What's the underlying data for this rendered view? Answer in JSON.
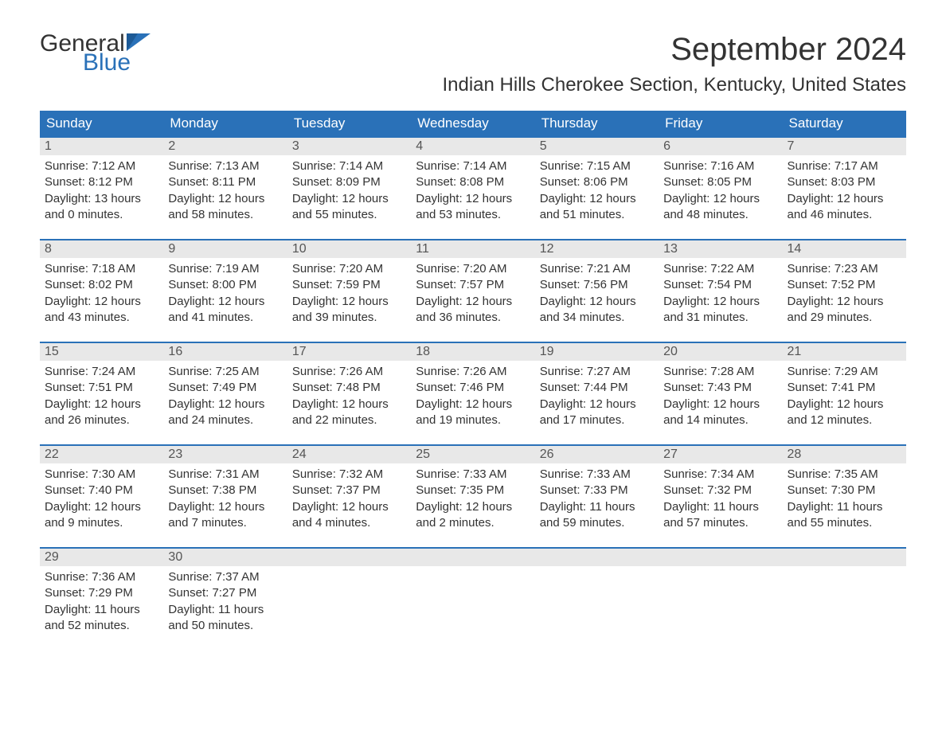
{
  "logo": {
    "text1": "General",
    "text2": "Blue",
    "shape_color": "#2a71b8"
  },
  "header": {
    "month_title": "September 2024",
    "location": "Indian Hills Cherokee Section, Kentucky, United States"
  },
  "colors": {
    "header_bg": "#2a71b8",
    "header_text": "#ffffff",
    "daynum_bg": "#e8e8e8",
    "week_border": "#2a71b8",
    "body_text": "#333333",
    "page_bg": "#ffffff"
  },
  "day_names": [
    "Sunday",
    "Monday",
    "Tuesday",
    "Wednesday",
    "Thursday",
    "Friday",
    "Saturday"
  ],
  "weeks": [
    [
      {
        "n": "1",
        "sunrise": "Sunrise: 7:12 AM",
        "sunset": "Sunset: 8:12 PM",
        "d1": "Daylight: 13 hours",
        "d2": "and 0 minutes."
      },
      {
        "n": "2",
        "sunrise": "Sunrise: 7:13 AM",
        "sunset": "Sunset: 8:11 PM",
        "d1": "Daylight: 12 hours",
        "d2": "and 58 minutes."
      },
      {
        "n": "3",
        "sunrise": "Sunrise: 7:14 AM",
        "sunset": "Sunset: 8:09 PM",
        "d1": "Daylight: 12 hours",
        "d2": "and 55 minutes."
      },
      {
        "n": "4",
        "sunrise": "Sunrise: 7:14 AM",
        "sunset": "Sunset: 8:08 PM",
        "d1": "Daylight: 12 hours",
        "d2": "and 53 minutes."
      },
      {
        "n": "5",
        "sunrise": "Sunrise: 7:15 AM",
        "sunset": "Sunset: 8:06 PM",
        "d1": "Daylight: 12 hours",
        "d2": "and 51 minutes."
      },
      {
        "n": "6",
        "sunrise": "Sunrise: 7:16 AM",
        "sunset": "Sunset: 8:05 PM",
        "d1": "Daylight: 12 hours",
        "d2": "and 48 minutes."
      },
      {
        "n": "7",
        "sunrise": "Sunrise: 7:17 AM",
        "sunset": "Sunset: 8:03 PM",
        "d1": "Daylight: 12 hours",
        "d2": "and 46 minutes."
      }
    ],
    [
      {
        "n": "8",
        "sunrise": "Sunrise: 7:18 AM",
        "sunset": "Sunset: 8:02 PM",
        "d1": "Daylight: 12 hours",
        "d2": "and 43 minutes."
      },
      {
        "n": "9",
        "sunrise": "Sunrise: 7:19 AM",
        "sunset": "Sunset: 8:00 PM",
        "d1": "Daylight: 12 hours",
        "d2": "and 41 minutes."
      },
      {
        "n": "10",
        "sunrise": "Sunrise: 7:20 AM",
        "sunset": "Sunset: 7:59 PM",
        "d1": "Daylight: 12 hours",
        "d2": "and 39 minutes."
      },
      {
        "n": "11",
        "sunrise": "Sunrise: 7:20 AM",
        "sunset": "Sunset: 7:57 PM",
        "d1": "Daylight: 12 hours",
        "d2": "and 36 minutes."
      },
      {
        "n": "12",
        "sunrise": "Sunrise: 7:21 AM",
        "sunset": "Sunset: 7:56 PM",
        "d1": "Daylight: 12 hours",
        "d2": "and 34 minutes."
      },
      {
        "n": "13",
        "sunrise": "Sunrise: 7:22 AM",
        "sunset": "Sunset: 7:54 PM",
        "d1": "Daylight: 12 hours",
        "d2": "and 31 minutes."
      },
      {
        "n": "14",
        "sunrise": "Sunrise: 7:23 AM",
        "sunset": "Sunset: 7:52 PM",
        "d1": "Daylight: 12 hours",
        "d2": "and 29 minutes."
      }
    ],
    [
      {
        "n": "15",
        "sunrise": "Sunrise: 7:24 AM",
        "sunset": "Sunset: 7:51 PM",
        "d1": "Daylight: 12 hours",
        "d2": "and 26 minutes."
      },
      {
        "n": "16",
        "sunrise": "Sunrise: 7:25 AM",
        "sunset": "Sunset: 7:49 PM",
        "d1": "Daylight: 12 hours",
        "d2": "and 24 minutes."
      },
      {
        "n": "17",
        "sunrise": "Sunrise: 7:26 AM",
        "sunset": "Sunset: 7:48 PM",
        "d1": "Daylight: 12 hours",
        "d2": "and 22 minutes."
      },
      {
        "n": "18",
        "sunrise": "Sunrise: 7:26 AM",
        "sunset": "Sunset: 7:46 PM",
        "d1": "Daylight: 12 hours",
        "d2": "and 19 minutes."
      },
      {
        "n": "19",
        "sunrise": "Sunrise: 7:27 AM",
        "sunset": "Sunset: 7:44 PM",
        "d1": "Daylight: 12 hours",
        "d2": "and 17 minutes."
      },
      {
        "n": "20",
        "sunrise": "Sunrise: 7:28 AM",
        "sunset": "Sunset: 7:43 PM",
        "d1": "Daylight: 12 hours",
        "d2": "and 14 minutes."
      },
      {
        "n": "21",
        "sunrise": "Sunrise: 7:29 AM",
        "sunset": "Sunset: 7:41 PM",
        "d1": "Daylight: 12 hours",
        "d2": "and 12 minutes."
      }
    ],
    [
      {
        "n": "22",
        "sunrise": "Sunrise: 7:30 AM",
        "sunset": "Sunset: 7:40 PM",
        "d1": "Daylight: 12 hours",
        "d2": "and 9 minutes."
      },
      {
        "n": "23",
        "sunrise": "Sunrise: 7:31 AM",
        "sunset": "Sunset: 7:38 PM",
        "d1": "Daylight: 12 hours",
        "d2": "and 7 minutes."
      },
      {
        "n": "24",
        "sunrise": "Sunrise: 7:32 AM",
        "sunset": "Sunset: 7:37 PM",
        "d1": "Daylight: 12 hours",
        "d2": "and 4 minutes."
      },
      {
        "n": "25",
        "sunrise": "Sunrise: 7:33 AM",
        "sunset": "Sunset: 7:35 PM",
        "d1": "Daylight: 12 hours",
        "d2": "and 2 minutes."
      },
      {
        "n": "26",
        "sunrise": "Sunrise: 7:33 AM",
        "sunset": "Sunset: 7:33 PM",
        "d1": "Daylight: 11 hours",
        "d2": "and 59 minutes."
      },
      {
        "n": "27",
        "sunrise": "Sunrise: 7:34 AM",
        "sunset": "Sunset: 7:32 PM",
        "d1": "Daylight: 11 hours",
        "d2": "and 57 minutes."
      },
      {
        "n": "28",
        "sunrise": "Sunrise: 7:35 AM",
        "sunset": "Sunset: 7:30 PM",
        "d1": "Daylight: 11 hours",
        "d2": "and 55 minutes."
      }
    ],
    [
      {
        "n": "29",
        "sunrise": "Sunrise: 7:36 AM",
        "sunset": "Sunset: 7:29 PM",
        "d1": "Daylight: 11 hours",
        "d2": "and 52 minutes."
      },
      {
        "n": "30",
        "sunrise": "Sunrise: 7:37 AM",
        "sunset": "Sunset: 7:27 PM",
        "d1": "Daylight: 11 hours",
        "d2": "and 50 minutes."
      },
      {
        "n": "",
        "empty": true
      },
      {
        "n": "",
        "empty": true
      },
      {
        "n": "",
        "empty": true
      },
      {
        "n": "",
        "empty": true
      },
      {
        "n": "",
        "empty": true
      }
    ]
  ]
}
